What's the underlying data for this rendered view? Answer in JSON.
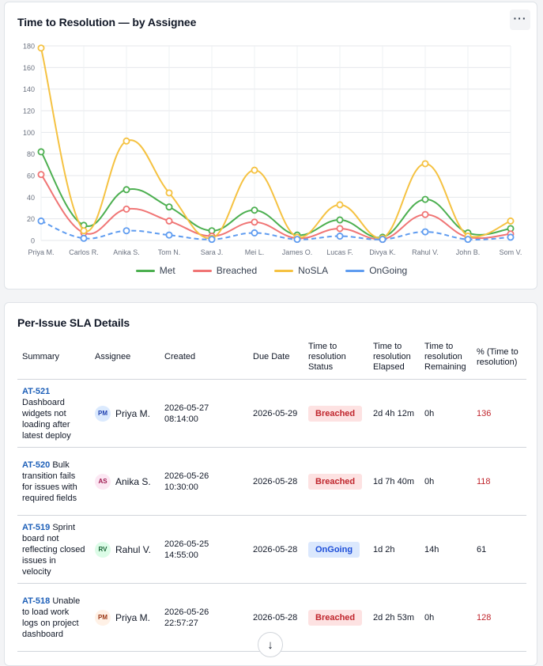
{
  "chart_card": {
    "title": "Time to Resolution — by Assignee",
    "menu_label": "···"
  },
  "chart_data": {
    "type": "line",
    "title": "Time to Resolution — by Assignee",
    "categories": [
      "Priya M.",
      "Carlos R.",
      "Anika S.",
      "Tom N.",
      "Sara J.",
      "Mei L.",
      "James O.",
      "Lucas F.",
      "Divya K.",
      "Rahul V.",
      "John B.",
      "Som V."
    ],
    "ylim": [
      0,
      180
    ],
    "yticks": [
      0,
      20,
      40,
      60,
      80,
      100,
      120,
      140,
      160,
      180
    ],
    "grid": true,
    "legend_position": "bottom",
    "series": [
      {
        "name": "Met",
        "color": "#4caf50",
        "dashed": false,
        "values": [
          82,
          14,
          47,
          31,
          9,
          28,
          5,
          19,
          3,
          38,
          7,
          11
        ]
      },
      {
        "name": "Breached",
        "color": "#f07575",
        "dashed": false,
        "values": [
          61,
          7,
          29,
          18,
          4,
          17,
          2,
          11,
          1,
          24,
          3,
          6
        ]
      },
      {
        "name": "NoSLA",
        "color": "#f5c242",
        "dashed": false,
        "values": [
          178,
          9,
          92,
          44,
          2,
          65,
          3,
          33,
          2,
          71,
          4,
          18
        ]
      },
      {
        "name": "OnGoing",
        "color": "#5f9cf0",
        "dashed": true,
        "values": [
          18,
          2,
          9,
          5,
          1,
          7,
          1,
          4,
          1,
          8,
          1,
          3
        ]
      }
    ]
  },
  "table_card": {
    "title": "Per-Issue SLA Details",
    "headers": [
      "Summary",
      "Assignee",
      "Created",
      "Due Date",
      "Time to resolution Status",
      "Time to resolution Elapsed",
      "Time to resolution Remaining",
      "% (Time to resolution)"
    ],
    "rows": [
      {
        "key": "AT-521",
        "summary": "Dashboard widgets not loading after latest deploy",
        "initials": "PM",
        "avatar_bg": "#dbeafe",
        "avatar_fg": "#1e40af",
        "assignee": "Priya M.",
        "created": "2026-05-27 08:14:00",
        "due": "2026-05-29",
        "status": "Breached",
        "elapsed": "2d 4h 12m",
        "remaining": "0h",
        "pct": "136"
      },
      {
        "key": "AT-520",
        "summary": "Bulk transition fails for issues with required fields",
        "initials": "AS",
        "avatar_bg": "#fce7f3",
        "avatar_fg": "#9d174d",
        "assignee": "Anika S.",
        "created": "2026-05-26 10:30:00",
        "due": "2026-05-28",
        "status": "Breached",
        "elapsed": "1d 7h 40m",
        "remaining": "0h",
        "pct": "118"
      },
      {
        "key": "AT-519",
        "summary": "Sprint board not reflecting closed issues in velocity",
        "initials": "RV",
        "avatar_bg": "#dcfce7",
        "avatar_fg": "#166534",
        "assignee": "Rahul V.",
        "created": "2026-05-25 14:55:00",
        "due": "2026-05-28",
        "status": "OnGoing",
        "elapsed": "1d 2h",
        "remaining": "14h",
        "pct": "61"
      },
      {
        "key": "AT-518",
        "summary": "Unable to load work logs on project dashboard",
        "initials": "PM",
        "avatar_bg": "#fff1e6",
        "avatar_fg": "#9a3412",
        "assignee": "Priya M.",
        "created": "2026-05-26 22:57:27",
        "due": "2026-05-28",
        "status": "Breached",
        "elapsed": "2d 2h 53m",
        "remaining": "0h",
        "pct": "128"
      }
    ]
  },
  "scroll_icon": "arrow-down-icon",
  "scroll_glyph": "↓"
}
